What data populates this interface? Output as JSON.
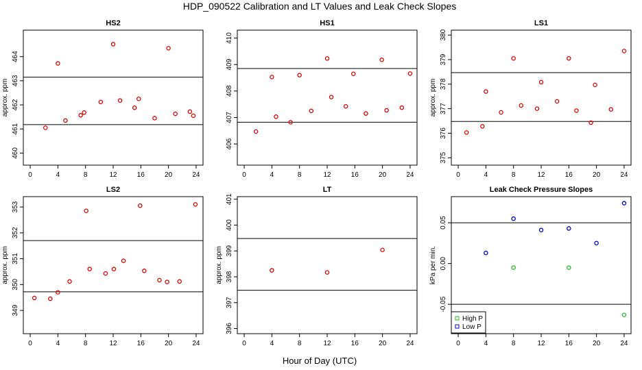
{
  "figure": {
    "title": "HDP_090522  Calibration and LT Values and Leak Check Slopes",
    "xlabel": "Hour of Day (UTC)"
  },
  "chart_data": [
    {
      "type": "scatter",
      "title": "HS2",
      "ylabel": "approx. ppm",
      "xlim": [
        -1,
        25
      ],
      "ylim": [
        459.5,
        465.1
      ],
      "xticks": [
        0,
        4,
        8,
        12,
        16,
        20,
        24
      ],
      "yticks": [
        460,
        461,
        462,
        463,
        464
      ],
      "hlines": [
        463.15,
        461.18
      ],
      "series": [
        {
          "color": "#dd0000",
          "x": [
            2.2,
            4.0,
            5.1,
            7.3,
            7.8,
            10.2,
            12.0,
            13.0,
            15.1,
            15.7,
            18.0,
            20.0,
            21.0,
            23.1,
            23.6
          ],
          "y": [
            461.05,
            463.72,
            461.35,
            461.57,
            461.68,
            462.12,
            464.52,
            462.18,
            461.88,
            462.25,
            461.45,
            464.35,
            461.63,
            461.72,
            461.55
          ]
        }
      ]
    },
    {
      "type": "scatter",
      "title": "HS1",
      "ylabel": "",
      "xlim": [
        -1,
        25
      ],
      "ylim": [
        405.2,
        410.3
      ],
      "xticks": [
        0,
        4,
        8,
        12,
        16,
        20,
        24
      ],
      "yticks": [
        406,
        407,
        408,
        409,
        410
      ],
      "hlines": [
        408.85,
        406.82
      ],
      "series": [
        {
          "color": "#dd0000",
          "x": [
            1.7,
            4.0,
            4.6,
            6.7,
            8.0,
            9.7,
            12.0,
            12.6,
            14.7,
            15.8,
            17.6,
            19.9,
            20.6,
            22.8,
            24.0
          ],
          "y": [
            406.47,
            408.53,
            407.03,
            406.82,
            408.6,
            407.25,
            409.23,
            407.77,
            407.42,
            408.65,
            407.15,
            409.18,
            407.27,
            407.37,
            408.66
          ]
        }
      ]
    },
    {
      "type": "scatter",
      "title": "LS1",
      "ylabel": "approx. ppm",
      "xlim": [
        -1,
        25
      ],
      "ylim": [
        374.7,
        380.2
      ],
      "xticks": [
        0,
        4,
        8,
        12,
        16,
        20,
        24
      ],
      "yticks": [
        375,
        376,
        377,
        378,
        379,
        380
      ],
      "hlines": [
        378.47,
        376.48
      ],
      "series": [
        {
          "color": "#dd0000",
          "x": [
            1.2,
            3.5,
            4.0,
            6.2,
            8.0,
            9.1,
            11.4,
            12.0,
            14.3,
            16.0,
            17.1,
            19.2,
            19.8,
            22.1,
            24.0
          ],
          "y": [
            376.03,
            376.28,
            377.7,
            376.85,
            379.05,
            377.13,
            377.0,
            378.08,
            377.3,
            379.05,
            376.92,
            376.43,
            377.97,
            376.97,
            379.35
          ]
        }
      ]
    },
    {
      "type": "scatter",
      "title": "LS2",
      "ylabel": "approx. ppm",
      "xlim": [
        -1,
        25
      ],
      "ylim": [
        348.1,
        353.4
      ],
      "xticks": [
        0,
        4,
        8,
        12,
        16,
        20,
        24
      ],
      "yticks": [
        349,
        350,
        351,
        352,
        353
      ],
      "hlines": [
        351.7,
        349.72
      ],
      "series": [
        {
          "color": "#dd0000",
          "x": [
            0.6,
            2.9,
            4.0,
            5.7,
            8.1,
            8.6,
            10.9,
            12.1,
            13.5,
            15.9,
            16.5,
            18.7,
            19.8,
            21.6,
            23.9
          ],
          "y": [
            349.48,
            349.45,
            349.7,
            350.12,
            352.85,
            350.6,
            350.43,
            350.6,
            350.92,
            353.05,
            350.53,
            350.17,
            350.1,
            350.12,
            353.1
          ]
        }
      ]
    },
    {
      "type": "scatter",
      "title": "LT",
      "ylabel": "approx. ppm",
      "xlim": [
        -1,
        25
      ],
      "ylim": [
        395.8,
        401.1
      ],
      "xticks": [
        0,
        4,
        8,
        12,
        16,
        20,
        24
      ],
      "yticks": [
        396,
        397,
        398,
        399,
        400,
        401
      ],
      "hlines": [
        399.48,
        397.48
      ],
      "series": [
        {
          "color": "#dd0000",
          "x": [
            4.0,
            12.0,
            20.0
          ],
          "y": [
            398.25,
            398.17,
            399.04
          ]
        }
      ]
    },
    {
      "type": "scatter",
      "title": "Leak Check Pressure Slopes",
      "ylabel": "kPa per min.",
      "xlim": [
        -1,
        25
      ],
      "ylim": [
        -0.086,
        0.082
      ],
      "xticks": [
        0,
        4,
        8,
        12,
        16,
        20,
        24
      ],
      "yticks": [
        -0.05,
        0.0,
        0.05
      ],
      "ytick_labels": [
        "-0.05",
        "0.00",
        "0.05"
      ],
      "hlines": [
        0.05,
        -0.05
      ],
      "legend": "bottom-left",
      "series": [
        {
          "name": "High P",
          "color": "#22bb22",
          "x": [
            8,
            16,
            24
          ],
          "y": [
            -0.005,
            -0.005,
            -0.063
          ]
        },
        {
          "name": "Low P",
          "color": "#0000cc",
          "x": [
            4,
            8,
            12,
            16,
            20,
            24
          ],
          "y": [
            0.013,
            0.055,
            0.041,
            0.043,
            0.025,
            0.074
          ]
        }
      ]
    }
  ]
}
